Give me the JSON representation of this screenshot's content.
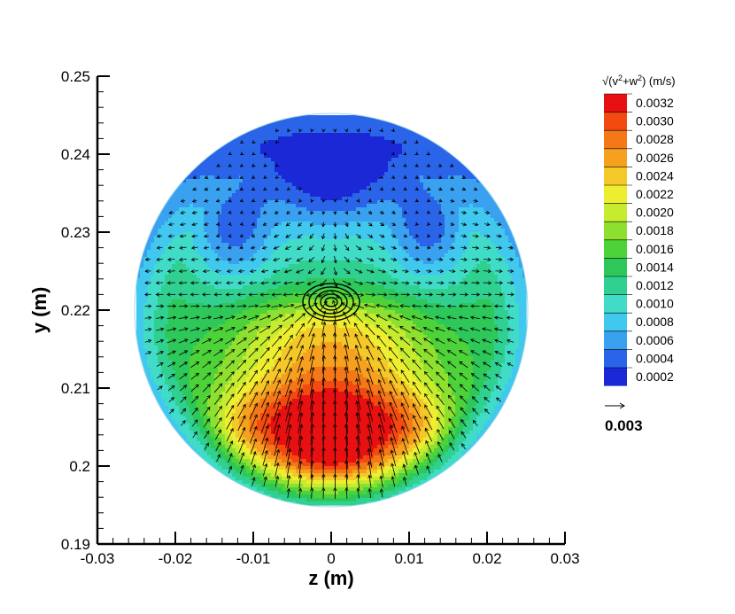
{
  "chart_data": {
    "type": "heatmap",
    "subtype": "contour-with-vector-field",
    "xlabel": "z  (m)",
    "ylabel": "y  (m)",
    "xlim": [
      -0.03,
      0.03
    ],
    "ylim": [
      0.19,
      0.25
    ],
    "x_ticks": [
      "-0.03",
      "-0.02",
      "-0.01",
      "0",
      "0.01",
      "0.02",
      "0.03"
    ],
    "y_ticks": [
      "0.19",
      "0.2",
      "0.21",
      "0.22",
      "0.23",
      "0.24",
      "0.25"
    ],
    "x_tick_values": [
      -0.03,
      -0.02,
      -0.01,
      0,
      0.01,
      0.02,
      0.03
    ],
    "y_tick_values": [
      0.19,
      0.2,
      0.21,
      0.22,
      0.23,
      0.24,
      0.25
    ],
    "domain": {
      "shape": "circle",
      "center_z": 0.0,
      "center_y": 0.22,
      "radius": 0.025
    },
    "colorbar": {
      "title_parts": {
        "prefix": "√(v",
        "sup1": "2",
        "mid": "+w",
        "sup2": "2",
        "suffix": ")  (m/s)"
      },
      "levels": [
        "0.0032",
        "0.0030",
        "0.0028",
        "0.0026",
        "0.0024",
        "0.0022",
        "0.0020",
        "0.0018",
        "0.0016",
        "0.0014",
        "0.0012",
        "0.0010",
        "0.0008",
        "0.0006",
        "0.0004",
        "0.0002"
      ],
      "colors": [
        "#e81010",
        "#f24a10",
        "#f47818",
        "#f6a020",
        "#f4c828",
        "#eeee30",
        "#c6ec30",
        "#8ee030",
        "#4ed23a",
        "#2ec85a",
        "#30d090",
        "#40dcc8",
        "#40c8ee",
        "#3aa0f0",
        "#2a64e8",
        "#1a28d6"
      ]
    },
    "vortex_center": {
      "z": 0.0,
      "y": 0.2208
    },
    "reference_vector": {
      "label": "0.003",
      "magnitude": 0.003
    },
    "speed_max": 0.0032,
    "speed_min": 0.0002
  }
}
